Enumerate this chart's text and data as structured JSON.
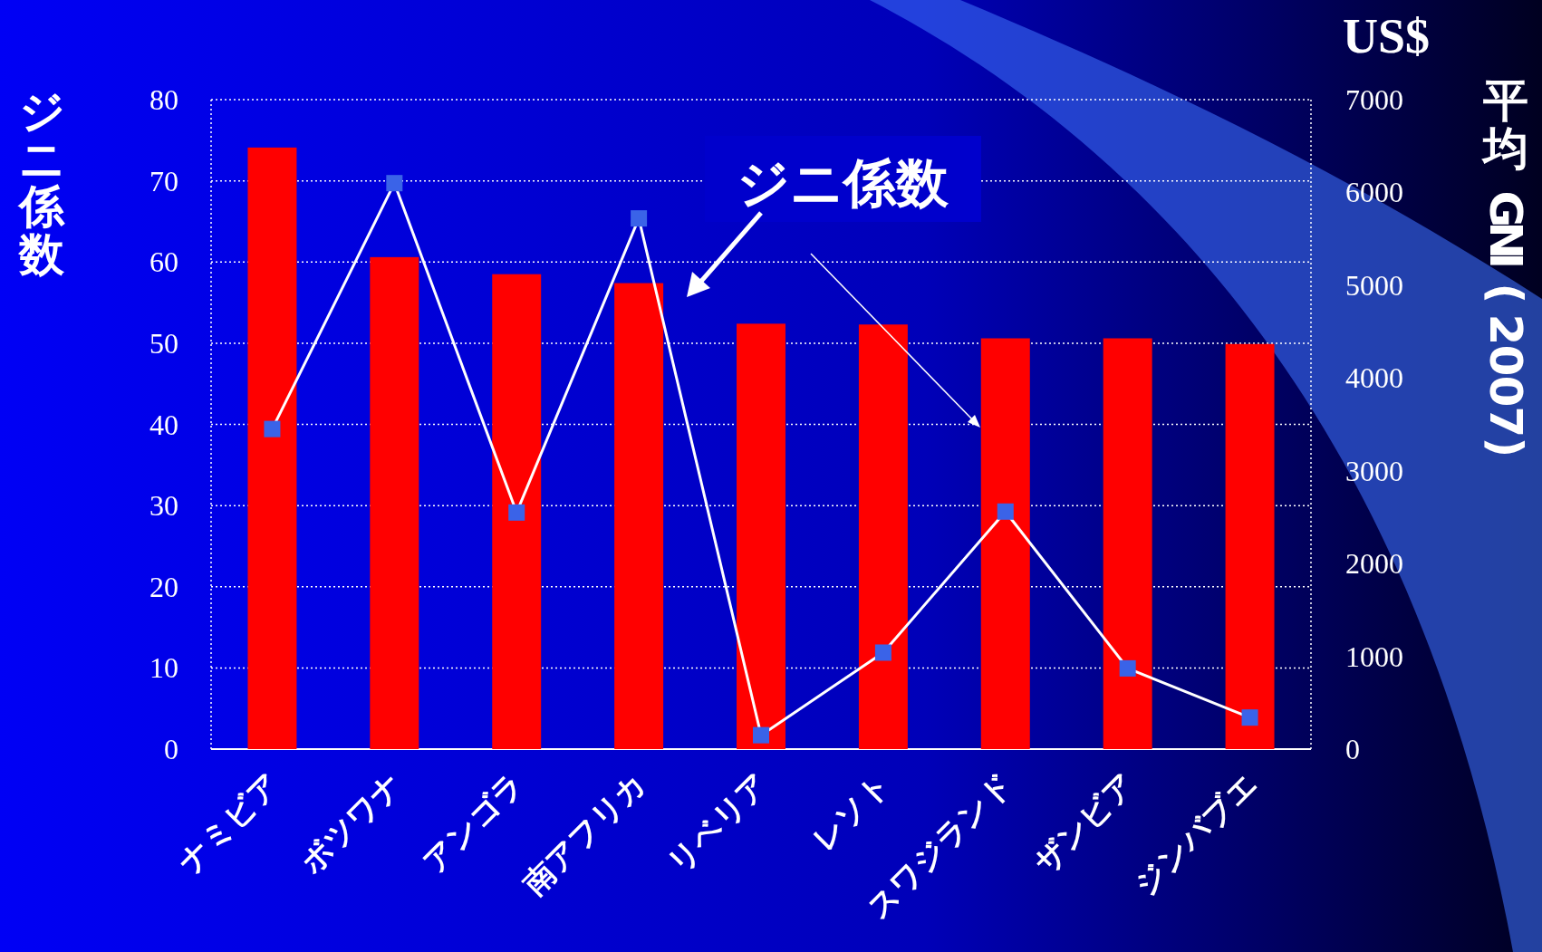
{
  "chart_data": {
    "type": "bar",
    "categories": [
      "ナミビア",
      "ボツワナ",
      "アンゴラ",
      "南アフリカ",
      "リベリア",
      "レソト",
      "スワジランド",
      "ザンビア",
      "ジンバブエ"
    ],
    "series": [
      {
        "name": "ジニ係数",
        "color": "#ff0000",
        "values": [
          74.1,
          60.6,
          58.5,
          57.4,
          52.4,
          52.3,
          50.6,
          50.6,
          49.9
        ]
      },
      {
        "type": "line",
        "axis": "y2",
        "color": "#ffffff",
        "values": [
          3450,
          6100,
          2550,
          5720,
          150,
          1040,
          2560,
          870,
          340
        ]
      }
    ],
    "ylabel": "ジニ係数",
    "y2label": "平均 GNI(2007)",
    "annotations": [
      "US$"
    ],
    "ylim": [
      0,
      80
    ],
    "yticks": [
      0,
      10,
      20,
      30,
      40,
      50,
      60,
      70,
      80
    ],
    "y2lim": [
      0,
      7000
    ],
    "y2ticks": [
      0,
      1000,
      2000,
      3000,
      4000,
      5000,
      6000,
      7000
    ],
    "grid": "y",
    "marker": "square",
    "line_style": "solid"
  }
}
